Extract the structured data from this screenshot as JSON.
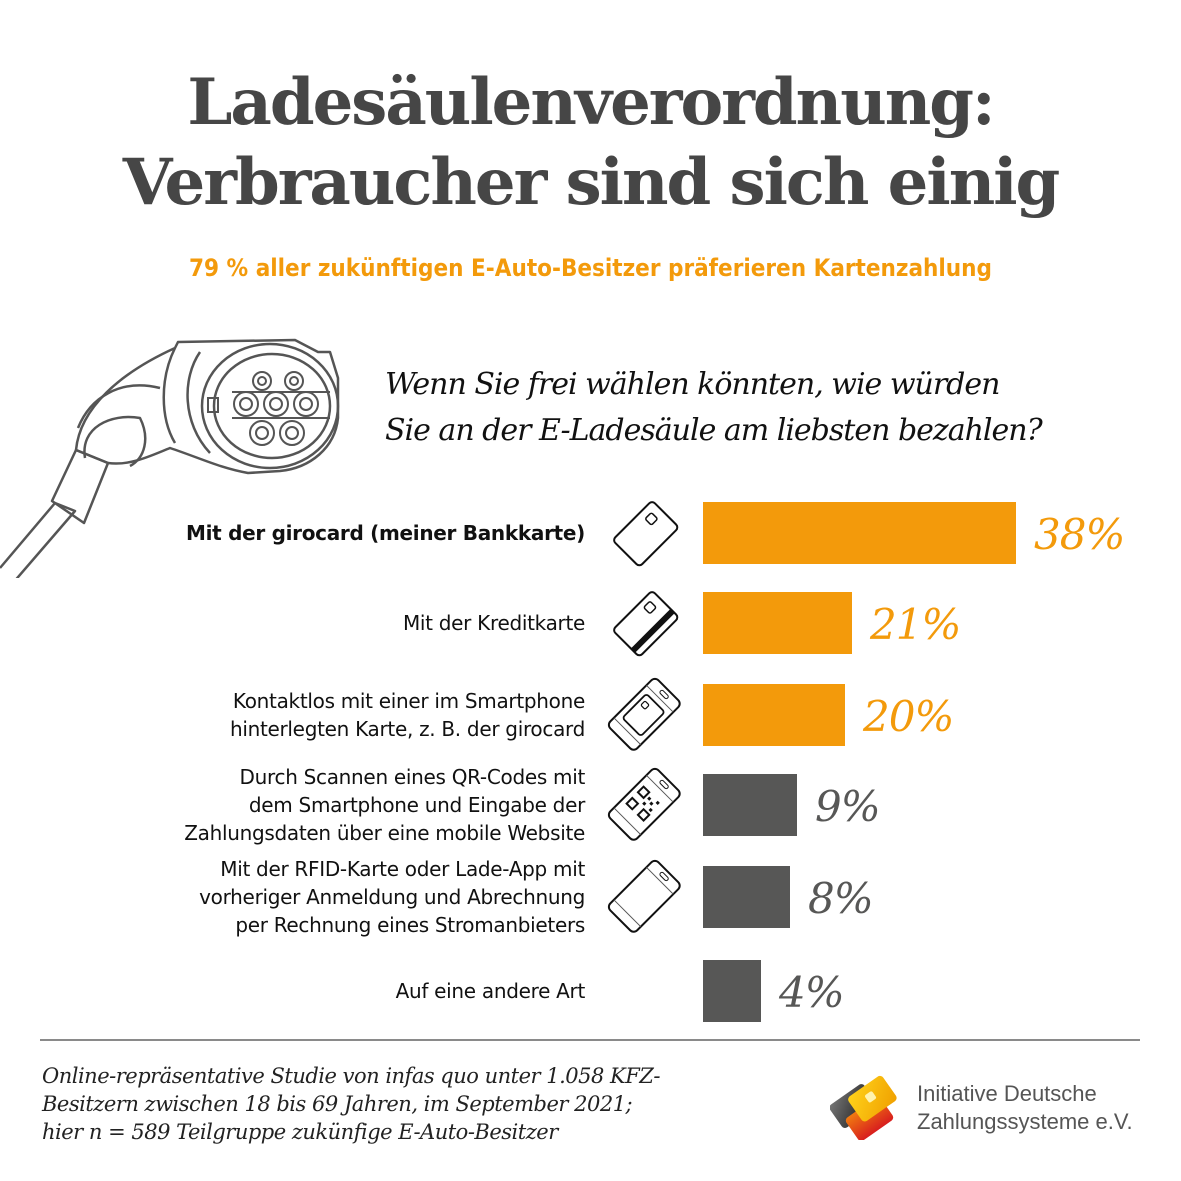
{
  "header": {
    "title_line1": "Ladesäulenverordnung:",
    "title_line2": "Verbraucher sind sich einig",
    "subtitle": "79 % aller zukünftigen E-Auto-Besitzer präferieren Kartenzahlung"
  },
  "question": {
    "line1": "Wenn Sie frei wählen könnten, wie würden",
    "line2": "Sie an der E-Ladesäule am liebsten bezahlen?"
  },
  "colors": {
    "highlight": "#f39a0b",
    "neutral": "#575756",
    "title": "#464646"
  },
  "chart_data": {
    "type": "bar",
    "orientation": "horizontal",
    "title": "Wenn Sie frei wählen könnten, wie würden Sie an der E-Ladesäule am liebsten bezahlen?",
    "unit": "%",
    "categories": [
      [
        "Mit der girocard (meiner Bankkarte)"
      ],
      [
        "Mit der Kreditkarte"
      ],
      [
        "Kontaktlos mit einer im Smartphone",
        "hinterlegten Karte, z. B. der girocard"
      ],
      [
        "Durch Scannen eines QR-Codes mit",
        "dem Smartphone und Eingabe der",
        "Zahlungsdaten über eine mobile Website"
      ],
      [
        "Mit der RFID-Karte oder Lade-App mit",
        "vorheriger Anmeldung und Abrechnung",
        "per Rechnung eines Stromanbieters"
      ],
      [
        "Auf eine andere Art"
      ]
    ],
    "values": [
      38,
      21,
      20,
      9,
      8,
      4
    ],
    "value_labels": [
      "38%",
      "21%",
      "20%",
      "9%",
      "8%",
      "4%"
    ],
    "highlighted": [
      true,
      true,
      true,
      false,
      false,
      false
    ],
    "icons": [
      "bank-card-icon",
      "credit-card-icon",
      "smartphone-card-icon",
      "smartphone-qr-icon",
      "smartphone-icon",
      ""
    ]
  },
  "footnote": {
    "line1": "Online-repräsentative Studie von infas quo unter 1.058 KFZ-",
    "line2": "Besitzern zwischen 18 bis 69 Jahren, im September 2021;",
    "line3": "hier n = 589 Teilgruppe zukünfige E-Auto-Besitzer"
  },
  "logo": {
    "line1": "Initiative Deutsche",
    "line2": "Zahlungssysteme e.V."
  }
}
